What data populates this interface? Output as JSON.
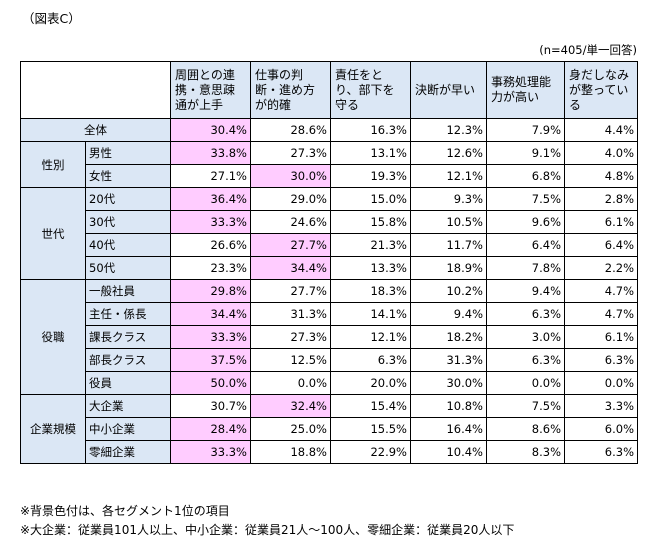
{
  "caption": "（図表C）",
  "note_n": "(n=405/単一回答)",
  "columns": [
    "周囲との連携・意思疎通が上手",
    "仕事の判断・進め方が的確",
    "責任をとり、部下を守る",
    "決断が早い",
    "事務処理能力が高い",
    "身だしなみが整っている"
  ],
  "total": {
    "label": "全体",
    "values": [
      "30.4%",
      "28.6%",
      "16.3%",
      "12.3%",
      "7.9%",
      "4.4%"
    ],
    "top": 0
  },
  "groups": [
    {
      "label": "性別",
      "rows": [
        {
          "label": "男性",
          "values": [
            "33.8%",
            "27.3%",
            "13.1%",
            "12.6%",
            "9.1%",
            "4.0%"
          ],
          "top": 0
        },
        {
          "label": "女性",
          "values": [
            "27.1%",
            "30.0%",
            "19.3%",
            "12.1%",
            "6.8%",
            "4.8%"
          ],
          "top": 1
        }
      ]
    },
    {
      "label": "世代",
      "rows": [
        {
          "label": "20代",
          "values": [
            "36.4%",
            "29.0%",
            "15.0%",
            "9.3%",
            "7.5%",
            "2.8%"
          ],
          "top": 0
        },
        {
          "label": "30代",
          "values": [
            "33.3%",
            "24.6%",
            "15.8%",
            "10.5%",
            "9.6%",
            "6.1%"
          ],
          "top": 0
        },
        {
          "label": "40代",
          "values": [
            "26.6%",
            "27.7%",
            "21.3%",
            "11.7%",
            "6.4%",
            "6.4%"
          ],
          "top": 1
        },
        {
          "label": "50代",
          "values": [
            "23.3%",
            "34.4%",
            "13.3%",
            "18.9%",
            "7.8%",
            "2.2%"
          ],
          "top": 1
        }
      ]
    },
    {
      "label": "役職",
      "rows": [
        {
          "label": "一般社員",
          "values": [
            "29.8%",
            "27.7%",
            "18.3%",
            "10.2%",
            "9.4%",
            "4.7%"
          ],
          "top": 0
        },
        {
          "label": "主任・係長",
          "values": [
            "34.4%",
            "31.3%",
            "14.1%",
            "9.4%",
            "6.3%",
            "4.7%"
          ],
          "top": 0
        },
        {
          "label": "課長クラス",
          "values": [
            "33.3%",
            "27.3%",
            "12.1%",
            "18.2%",
            "3.0%",
            "6.1%"
          ],
          "top": 0
        },
        {
          "label": "部長クラス",
          "values": [
            "37.5%",
            "12.5%",
            "6.3%",
            "31.3%",
            "6.3%",
            "6.3%"
          ],
          "top": 0
        },
        {
          "label": "役員",
          "values": [
            "50.0%",
            "0.0%",
            "20.0%",
            "30.0%",
            "0.0%",
            "0.0%"
          ],
          "top": 0
        }
      ]
    },
    {
      "label": "企業規模",
      "rows": [
        {
          "label": "大企業",
          "values": [
            "30.7%",
            "32.4%",
            "15.4%",
            "10.8%",
            "7.5%",
            "3.3%"
          ],
          "top": 1
        },
        {
          "label": "中小企業",
          "values": [
            "28.4%",
            "25.0%",
            "15.5%",
            "16.4%",
            "8.6%",
            "6.0%"
          ],
          "top": 0
        },
        {
          "label": "零細企業",
          "values": [
            "33.3%",
            "18.8%",
            "22.9%",
            "10.4%",
            "8.3%",
            "6.3%"
          ],
          "top": 0
        }
      ]
    }
  ],
  "footnotes": [
    "※背景色付は、各セグメント1位の項目",
    "※大企業：従業員101人以上、中小企業：従業員21人～100人、零細企業：従業員20人以下"
  ],
  "colors": {
    "header_bg": "#dbe7f5",
    "highlight": "#ffccff"
  }
}
